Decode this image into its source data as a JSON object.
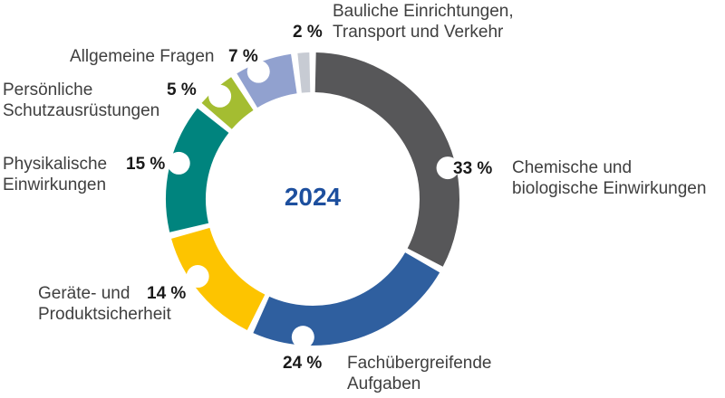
{
  "colors": {
    "background": "#ffffff",
    "percent_text": "#1a1a1a",
    "category_text": "#3f3f3f",
    "center_year_text": "#1d4f9e",
    "notch": "#ffffff"
  },
  "chart_data": {
    "type": "pie",
    "subtype": "donut",
    "title": "",
    "center_label": "2024",
    "unit": "%",
    "start_angle_deg": 0,
    "direction": "clockwise",
    "legend_position": "around",
    "slices": [
      {
        "key": "chemische",
        "label": "Chemische und biologische Einwirkungen",
        "value_pct": 33,
        "color": "#575759",
        "notch_angle_deg": 77
      },
      {
        "key": "fach",
        "label": "Fachübergreifende Aufgaben",
        "value_pct": 24,
        "color": "#2f5f9f",
        "notch_angle_deg": 184
      },
      {
        "key": "geraete",
        "label": "Geräte- und Produktsicherheit",
        "value_pct": 14,
        "color": "#fdc400",
        "notch_angle_deg": 236
      },
      {
        "key": "physikalische",
        "label": "Physikalische Einwirkungen",
        "value_pct": 15,
        "color": "#00847e",
        "notch_angle_deg": 285
      },
      {
        "key": "persoenliche",
        "label": "Persönliche Schutzausrüstungen",
        "value_pct": 5,
        "color": "#a4bd31",
        "notch_angle_deg": 318
      },
      {
        "key": "allgemeine",
        "label": "Allgemeine Fragen",
        "value_pct": 7,
        "color": "#91a1cf",
        "notch_angle_deg": 337
      },
      {
        "key": "bauliche",
        "label": "Bauliche Einrichtungen, Transport und Verkehr",
        "value_pct": 2,
        "color": "#c7cbd3",
        "notch_angle_deg": null
      }
    ]
  },
  "labels": {
    "bauliche": {
      "pct": "2 %",
      "line1": "Bauliche Einrichtungen,",
      "line2": "Transport und Verkehr"
    },
    "allgemeine": {
      "pct": "7 %",
      "line1": "Allgemeine Fragen",
      "line2": ""
    },
    "persoenliche": {
      "pct": "5 %",
      "line1": "Persönliche",
      "line2": "Schutzausrüstungen"
    },
    "physikalische": {
      "pct": "15 %",
      "line1": "Physikalische",
      "line2": "Einwirkungen"
    },
    "geraete": {
      "pct": "14 %",
      "line1": "Geräte- und",
      "line2": "Produktsicherheit"
    },
    "fach": {
      "pct": "24 %",
      "line1": "Fachübergreifende",
      "line2": "Aufgaben"
    },
    "chemische": {
      "pct": "33 %",
      "line1": "Chemische und",
      "line2": "biologische Einwirkungen"
    }
  }
}
